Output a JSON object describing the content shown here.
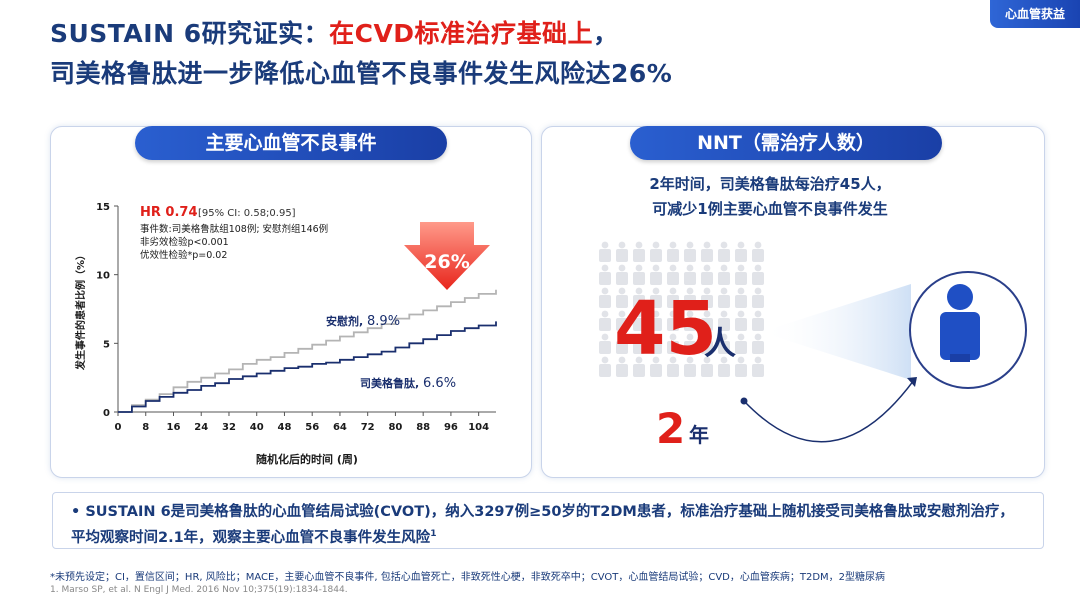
{
  "header": {
    "title_line1_prefix": "SUSTAIN 6研究证实：",
    "title_line1_highlight": "在CVD标准治疗基础上",
    "title_line1_suffix": "，",
    "title_line2": "司美格鲁肽进一步降低心血管不良事件发生风险达26%",
    "corner_tag": "心血管获益"
  },
  "left_panel": {
    "pill_label": "主要心血管不良事件",
    "hr_label": "HR 0.74",
    "hr_ci": "[95% CI: 0.58;0.95]",
    "events_line": "事件数:司美格鲁肽组108例; 安慰剂组146例",
    "noninferiority": "非劣效检验p<0.001",
    "superiority": "优效性检验*p=0.02",
    "reduction_badge": "26%",
    "placebo_label": "安慰剂, ",
    "placebo_value": "8.9%",
    "sema_label": "司美格鲁肽, ",
    "sema_value": "6.6%"
  },
  "chart_data": {
    "type": "line",
    "xlabel": "随机化后的时间 (周)",
    "ylabel": "发生事件的患者比例（%）",
    "x_ticks": [
      0,
      8,
      16,
      24,
      32,
      40,
      48,
      56,
      64,
      72,
      80,
      88,
      96,
      104
    ],
    "y_ticks": [
      0,
      5,
      10,
      15
    ],
    "xlim": [
      0,
      109
    ],
    "ylim": [
      0,
      15
    ],
    "series": [
      {
        "name": "安慰剂",
        "color": "#b4b4b4",
        "x": [
          0,
          4,
          8,
          12,
          16,
          20,
          24,
          28,
          32,
          36,
          40,
          44,
          48,
          52,
          56,
          60,
          64,
          68,
          72,
          76,
          80,
          84,
          88,
          92,
          96,
          100,
          104,
          109
        ],
        "y": [
          0,
          0.5,
          0.9,
          1.3,
          1.8,
          2.2,
          2.5,
          2.8,
          3.1,
          3.5,
          3.8,
          4.0,
          4.3,
          4.6,
          4.9,
          5.2,
          5.5,
          5.8,
          6.1,
          6.4,
          6.8,
          7.1,
          7.4,
          7.7,
          8.0,
          8.3,
          8.6,
          8.9
        ]
      },
      {
        "name": "司美格鲁肽",
        "color": "#1a2f6e",
        "x": [
          0,
          4,
          8,
          12,
          16,
          20,
          24,
          28,
          32,
          36,
          40,
          44,
          48,
          52,
          56,
          60,
          64,
          68,
          72,
          76,
          80,
          84,
          88,
          92,
          96,
          100,
          104,
          109
        ],
        "y": [
          0,
          0.4,
          0.8,
          1.1,
          1.4,
          1.6,
          1.9,
          2.1,
          2.4,
          2.6,
          2.8,
          3.0,
          3.2,
          3.3,
          3.5,
          3.6,
          3.8,
          4.0,
          4.2,
          4.4,
          4.7,
          5.0,
          5.3,
          5.6,
          5.9,
          6.1,
          6.3,
          6.6
        ]
      }
    ]
  },
  "right_panel": {
    "pill_label": "NNT（需治疗人数）",
    "desc_line1": "2年时间，司美格鲁肽每治疗45人，",
    "desc_line2": "可减少1例主要心血管不良事件发生",
    "big_number": "45",
    "big_unit": "人",
    "years_number": "2",
    "years_unit": "年",
    "person_icon_count": 60
  },
  "note": {
    "bullet": "•",
    "text": "SUSTAIN 6是司美格鲁肽的心血管结局试验(CVOT)，纳入3297例≥50岁的T2DM患者，标准治疗基础上随机接受司美格鲁肽或安慰剂治疗，平均观察时间2.1年，观察主要心血管不良事件发生风险",
    "superscript": "1"
  },
  "footer": {
    "line1": "*未预先设定；CI，置信区间；HR, 风险比；MACE，主要心血管不良事件, 包括心血管死亡，非致死性心梗，非致死卒中；CVOT，心血管结局试验；CVD，心血管疾病；T2DM，2型糖尿病",
    "line2": "1. Marso SP, et al. N Engl J Med. 2016 Nov 10;375(19):1834-1844."
  }
}
